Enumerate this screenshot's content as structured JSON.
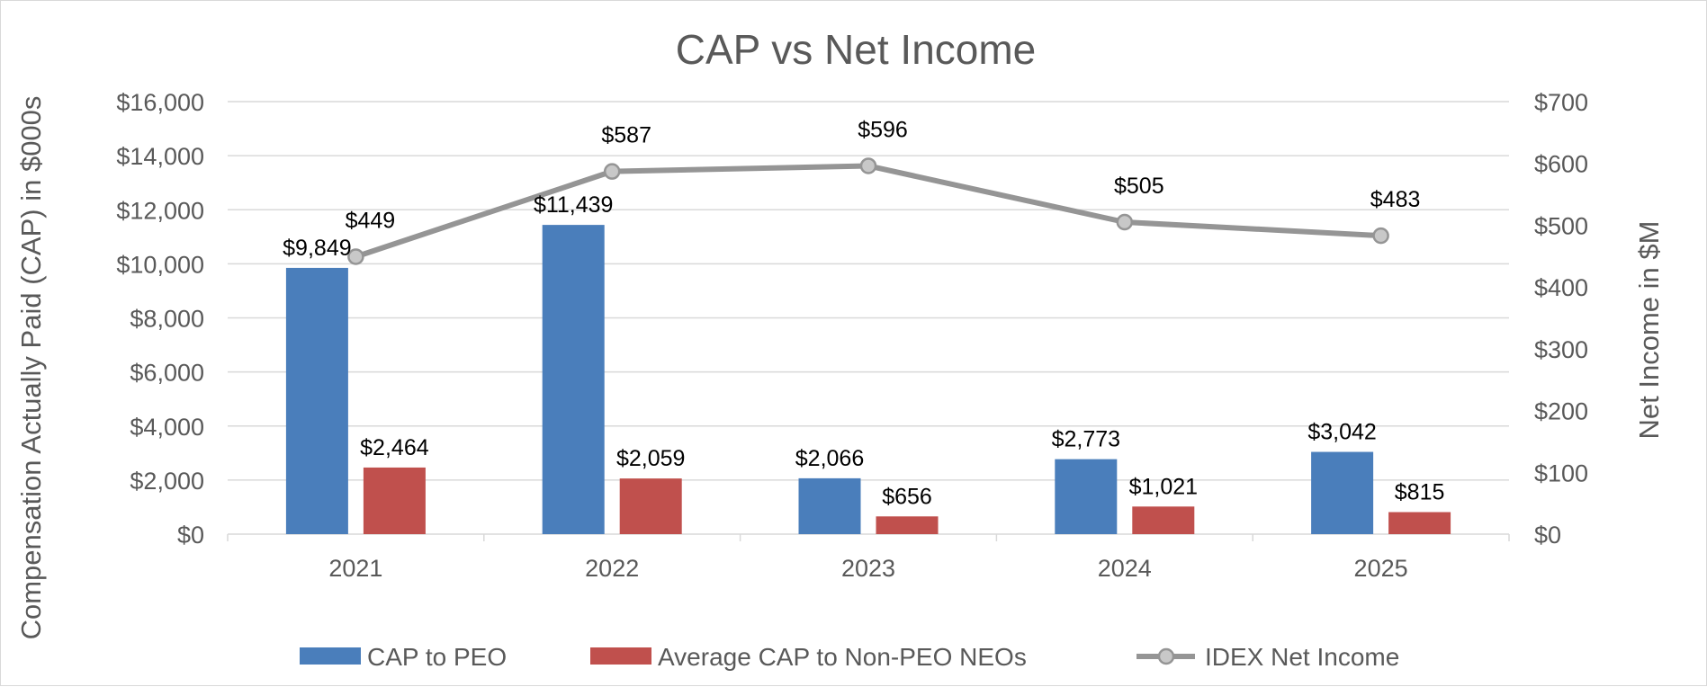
{
  "chart_data": {
    "type": "bar",
    "title": "CAP vs Net Income",
    "categories": [
      "2021",
      "2022",
      "2023",
      "2024",
      "2025"
    ],
    "y_left": {
      "label": "Compensation Actually Paid (CAP) in $000s",
      "min": 0,
      "max": 16000,
      "step": 2000,
      "ticks": [
        "$0",
        "$2,000",
        "$4,000",
        "$6,000",
        "$8,000",
        "$10,000",
        "$12,000",
        "$14,000",
        "$16,000"
      ]
    },
    "y_right": {
      "label": "Net Income in $M",
      "min": 0,
      "max": 700,
      "step": 100,
      "ticks": [
        "$0",
        "$100",
        "$200",
        "$300",
        "$400",
        "$500",
        "$600",
        "$700"
      ]
    },
    "series": [
      {
        "name": "CAP to PEO",
        "kind": "bar",
        "axis": "left",
        "color": "#4a7ebb",
        "values": [
          9849,
          11439,
          2066,
          2773,
          3042
        ],
        "labels": [
          "$9,849",
          "$11,439",
          "$2,066",
          "$2,773",
          "$3,042"
        ]
      },
      {
        "name": "Average CAP to Non-PEO NEOs",
        "kind": "bar",
        "axis": "left",
        "color": "#c0504d",
        "values": [
          2464,
          2059,
          656,
          1021,
          815
        ],
        "labels": [
          "$2,464",
          "$2,059",
          "$656",
          "$1,021",
          "$815"
        ]
      },
      {
        "name": "IDEX Net Income",
        "kind": "line",
        "axis": "right",
        "color": "#959595",
        "marker_fill": "#c8c8c8",
        "values": [
          449,
          587,
          596,
          505,
          483
        ],
        "labels": [
          "$449",
          "$587",
          "$596",
          "$505",
          "$483"
        ]
      }
    ],
    "gridlines": true,
    "legend_position": "bottom"
  }
}
